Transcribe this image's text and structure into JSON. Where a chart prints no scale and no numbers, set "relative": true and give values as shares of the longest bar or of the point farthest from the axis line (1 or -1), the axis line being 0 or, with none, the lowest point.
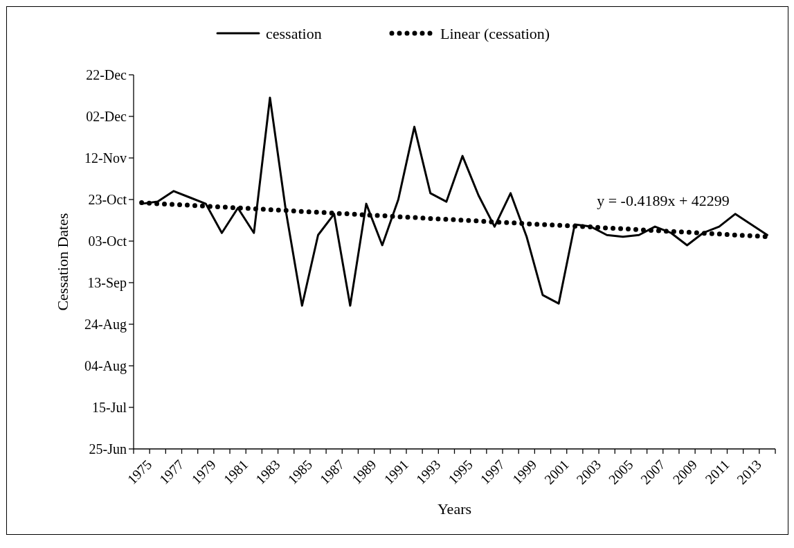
{
  "chart_data": {
    "type": "line",
    "xlabel": "Years",
    "ylabel": "Cessation Dates",
    "relative": true,
    "categories": [
      "1975",
      null,
      "1977",
      null,
      "1979",
      null,
      "1981",
      null,
      "1983",
      null,
      "1985",
      null,
      "1987",
      null,
      "1989",
      null,
      "1991",
      null,
      "1993",
      null,
      "1995",
      null,
      "1997",
      null,
      "1999",
      null,
      "2001",
      null,
      "2003",
      null,
      "2005",
      null,
      "2007",
      null,
      "2009",
      null,
      "2011",
      null,
      "2013",
      null
    ],
    "series": [
      {
        "name": "cessation",
        "color": "#000000",
        "line_style": "solid",
        "values": [
          0.698,
          0.704,
          0.734,
          0.716,
          0.698,
          0.615,
          0.686,
          0.615,
          1,
          0.675,
          0.408,
          0.609,
          0.669,
          0.408,
          0.698,
          0.58,
          0.71,
          0.917,
          0.728,
          0.704,
          0.834,
          0.722,
          0.633,
          0.728,
          0.604,
          0.438,
          0.414,
          0.639,
          0.633,
          0.609,
          0.604,
          0.609,
          0.633,
          0.615,
          0.58,
          0.615,
          0.633,
          0.669,
          0.639,
          0.609
        ]
      },
      {
        "name": "Linear (cessation)",
        "color": "#000000",
        "line_style": "dotted",
        "values": [
          0.701,
          0.698,
          0.696,
          0.694,
          0.691,
          0.689,
          0.686,
          0.684,
          0.681,
          0.679,
          0.676,
          0.674,
          0.671,
          0.669,
          0.666,
          0.664,
          0.661,
          0.659,
          0.656,
          0.654,
          0.651,
          0.649,
          0.646,
          0.644,
          0.641,
          0.639,
          0.637,
          0.634,
          0.632,
          0.629,
          0.627,
          0.624,
          0.622,
          0.619,
          0.617,
          0.614,
          0.612,
          0.609,
          0.607,
          0.604
        ]
      }
    ],
    "annotations": [
      "y = -0.4189x + 42299",
      "25-Jun",
      "15-Jul",
      "04-Aug",
      "24-Aug",
      "13-Sep",
      "03-Oct",
      "23-Oct",
      "12-Nov",
      "02-Dec",
      "22-Dec"
    ],
    "legend": "top"
  }
}
